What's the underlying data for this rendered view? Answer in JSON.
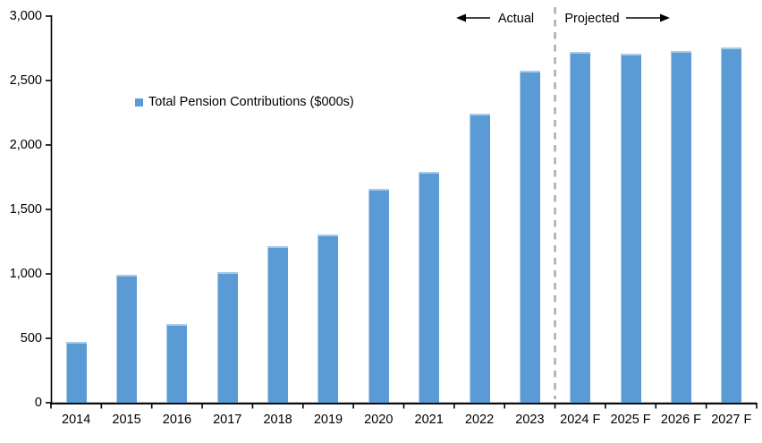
{
  "legend": {
    "label": "Total Pension Contributions ($000s)"
  },
  "chart_data": {
    "type": "bar",
    "title": "",
    "xlabel": "",
    "ylabel": "",
    "categories": [
      "2014",
      "2015",
      "2016",
      "2017",
      "2018",
      "2019",
      "2020",
      "2021",
      "2022",
      "2023",
      "2024 F",
      "2025 F",
      "2026 F",
      "2027 F"
    ],
    "series": [
      {
        "name": "Total Pension Contributions ($000s)",
        "values": [
          475,
          990,
          610,
          1015,
          1215,
          1305,
          1660,
          1790,
          2245,
          2575,
          2720,
          2705,
          2730,
          2760
        ]
      }
    ],
    "ylim": [
      0,
      3000
    ],
    "ytick_interval": 500,
    "ytick_labels": [
      "0",
      "500",
      "1,000",
      "1,500",
      "2,000",
      "2,500",
      "3,000"
    ],
    "grid": false,
    "legend_position": "inside-upper-left",
    "annotations": {
      "actual": "Actual",
      "projected": "Projected",
      "divider_between": [
        "2023",
        "2024 F"
      ]
    },
    "colors": {
      "bar": "#5B9BD5",
      "bar_highlight": "#A9CBE8",
      "axis": "#000000",
      "divider": "#ABABAB",
      "text": "#000000"
    }
  }
}
